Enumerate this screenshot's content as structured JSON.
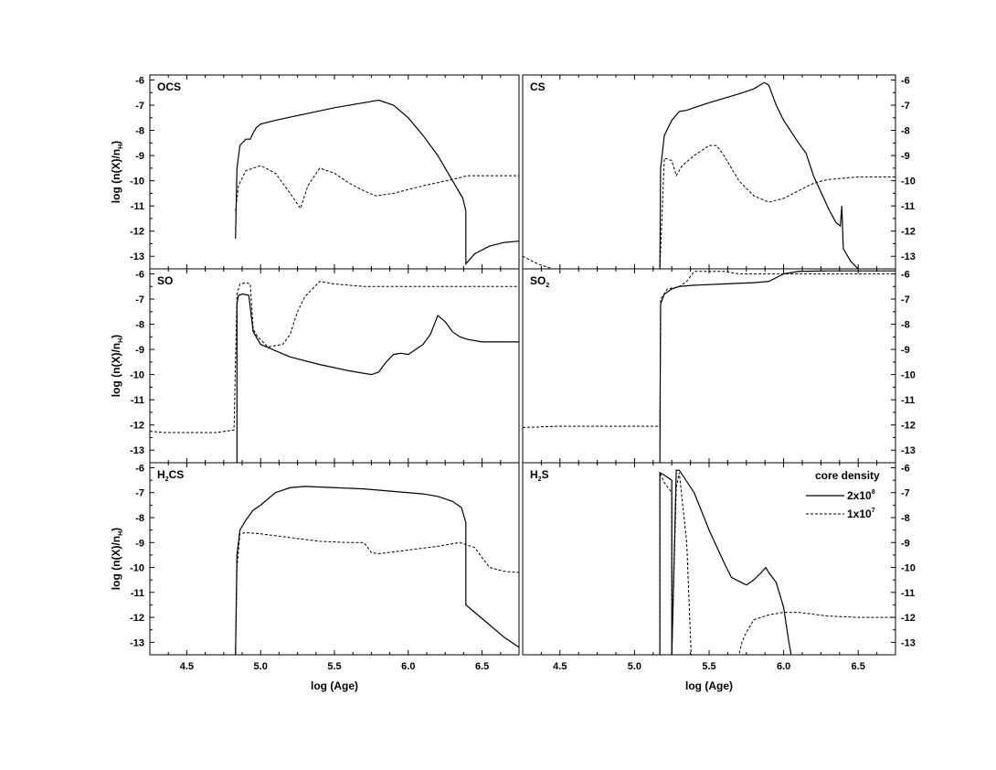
{
  "chart_data": {
    "type": "line",
    "ylabel": [
      "log (n(X)/n",
      "H",
      ")"
    ],
    "xlabel": "log (Age)",
    "xlim": [
      4.25,
      6.75
    ],
    "ylim": [
      -13.5,
      -5.8
    ],
    "xticks": [
      "4.5",
      "5.0",
      "5.5",
      "6.0",
      "6.5"
    ],
    "yticks": [
      "-6",
      "-7",
      "-8",
      "-9",
      "-10",
      "-11",
      "-12",
      "-13"
    ],
    "legend": {
      "title": "core density",
      "placement": "top-right of H2S panel",
      "entries": [
        {
          "style": "solid",
          "base": "2x10",
          "exp": "8"
        },
        {
          "style": "dashed",
          "base": "1x10",
          "exp": "7"
        }
      ]
    },
    "panels": [
      {
        "title": [
          "OCS"
        ],
        "position": "top-left",
        "series": [
          {
            "style": "solid",
            "x": [
              4.83,
              4.84,
              4.86,
              4.9,
              4.93,
              4.95,
              4.97,
              5.0,
              5.1,
              5.3,
              5.5,
              5.7,
              5.8,
              5.9,
              6.0,
              6.1,
              6.2,
              6.3,
              6.37,
              6.39,
              6.39,
              6.45,
              6.55,
              6.65,
              6.75
            ],
            "y": [
              -12.3,
              -9.5,
              -8.6,
              -8.35,
              -8.35,
              -8.1,
              -7.9,
              -7.75,
              -7.6,
              -7.35,
              -7.1,
              -6.9,
              -6.8,
              -7.0,
              -7.5,
              -8.2,
              -9.0,
              -10.0,
              -10.7,
              -11.2,
              -13.3,
              -12.9,
              -12.6,
              -12.45,
              -12.4
            ]
          },
          {
            "style": "dashed",
            "x": [
              4.83,
              4.85,
              4.9,
              5.0,
              5.1,
              5.2,
              5.27,
              5.32,
              5.4,
              5.5,
              5.6,
              5.7,
              5.78,
              5.9,
              6.1,
              6.3,
              6.4,
              6.5,
              6.75
            ],
            "y": [
              -11.2,
              -10.2,
              -9.6,
              -9.4,
              -9.7,
              -10.5,
              -11.1,
              -10.2,
              -9.5,
              -9.7,
              -10.1,
              -10.4,
              -10.6,
              -10.5,
              -10.2,
              -9.95,
              -9.8,
              -9.8,
              -9.8
            ]
          }
        ]
      },
      {
        "title": [
          "CS"
        ],
        "position": "top-right",
        "series": [
          {
            "style": "solid",
            "x": [
              5.17,
              5.175,
              5.2,
              5.25,
              5.3,
              5.35,
              5.5,
              5.7,
              5.8,
              5.87,
              5.9,
              5.95,
              6.0,
              6.1,
              6.15,
              6.2,
              6.3,
              6.35,
              6.38,
              6.39,
              6.4,
              6.45,
              6.5
            ],
            "y": [
              -13.5,
              -9.5,
              -8.2,
              -7.6,
              -7.25,
              -7.2,
              -6.9,
              -6.55,
              -6.35,
              -6.1,
              -6.2,
              -7.0,
              -7.6,
              -8.5,
              -8.9,
              -9.8,
              -11.1,
              -11.65,
              -11.8,
              -11.0,
              -12.7,
              -13.2,
              -13.5
            ]
          },
          {
            "style": "dashed",
            "x": [
              4.25,
              4.35,
              4.45,
              5.17,
              5.2,
              5.25,
              5.28,
              5.32,
              5.4,
              5.5,
              5.55,
              5.6,
              5.7,
              5.8,
              5.9,
              6.0,
              6.1,
              6.2,
              6.3,
              6.5,
              6.75
            ],
            "y": [
              -13.0,
              -13.3,
              -13.5,
              -13.5,
              -9.1,
              -9.2,
              -9.8,
              -9.4,
              -9.0,
              -8.6,
              -8.6,
              -9.0,
              -10.0,
              -10.6,
              -10.85,
              -10.7,
              -10.4,
              -10.1,
              -9.95,
              -9.85,
              -9.85
            ]
          }
        ]
      },
      {
        "title": [
          "SO"
        ],
        "position": "middle-left",
        "series": [
          {
            "style": "solid",
            "x": [
              4.84,
              4.84,
              4.85,
              4.88,
              4.92,
              4.95,
              5.0,
              5.2,
              5.4,
              5.6,
              5.75,
              5.8,
              5.85,
              5.9,
              5.95,
              6.0,
              6.05,
              6.1,
              6.15,
              6.2,
              6.25,
              6.3,
              6.35,
              6.4,
              6.5,
              6.75
            ],
            "y": [
              -13.5,
              -7.2,
              -6.85,
              -6.8,
              -6.85,
              -8.3,
              -8.8,
              -9.3,
              -9.6,
              -9.85,
              -10.0,
              -9.9,
              -9.5,
              -9.2,
              -9.15,
              -9.2,
              -9.0,
              -8.8,
              -8.4,
              -7.65,
              -7.9,
              -8.3,
              -8.5,
              -8.6,
              -8.7,
              -8.7
            ]
          },
          {
            "style": "dashed",
            "x": [
              4.25,
              4.35,
              4.5,
              4.7,
              4.82,
              4.84,
              4.86,
              4.9,
              4.93,
              4.95,
              4.98,
              5.05,
              5.15,
              5.2,
              5.25,
              5.3,
              5.4,
              5.5,
              5.7,
              6.0,
              6.3,
              6.75
            ],
            "y": [
              -12.25,
              -12.3,
              -12.3,
              -12.3,
              -12.2,
              -6.8,
              -6.4,
              -6.35,
              -6.4,
              -8.2,
              -8.5,
              -8.9,
              -8.8,
              -8.4,
              -7.5,
              -6.9,
              -6.3,
              -6.4,
              -6.5,
              -6.5,
              -6.5,
              -6.5
            ]
          }
        ]
      },
      {
        "title": [
          "SO",
          "2"
        ],
        "position": "middle-right",
        "series": [
          {
            "style": "solid",
            "x": [
              5.17,
              5.175,
              5.2,
              5.25,
              5.3,
              5.4,
              5.6,
              5.8,
              5.9,
              5.95,
              6.0,
              6.1,
              6.3,
              6.75
            ],
            "y": [
              -13.5,
              -7.2,
              -6.8,
              -6.6,
              -6.5,
              -6.45,
              -6.4,
              -6.35,
              -6.3,
              -6.15,
              -6.0,
              -5.9,
              -5.88,
              -5.88
            ]
          },
          {
            "style": "dashed",
            "x": [
              4.25,
              4.5,
              5.17,
              5.175,
              5.22,
              5.3,
              5.35,
              5.4,
              5.5,
              5.6,
              5.7,
              5.8,
              6.0,
              6.75
            ],
            "y": [
              -12.1,
              -12.05,
              -12.05,
              -7.0,
              -6.6,
              -6.5,
              -6.3,
              -5.9,
              -5.9,
              -5.9,
              -6.0,
              -6.0,
              -6.0,
              -6.0
            ]
          }
        ]
      },
      {
        "title": [
          "H",
          "2",
          "CS"
        ],
        "position": "bottom-left",
        "series": [
          {
            "style": "solid",
            "x": [
              4.83,
              4.84,
              4.86,
              4.9,
              4.95,
              5.0,
              5.1,
              5.2,
              5.3,
              5.5,
              5.7,
              5.9,
              6.1,
              6.2,
              6.3,
              6.36,
              6.39,
              6.39,
              6.45,
              6.55,
              6.65,
              6.75
            ],
            "y": [
              -13.5,
              -9.5,
              -8.5,
              -8.1,
              -7.7,
              -7.5,
              -7.0,
              -6.8,
              -6.75,
              -6.8,
              -6.85,
              -6.95,
              -7.05,
              -7.15,
              -7.35,
              -7.6,
              -8.2,
              -11.5,
              -11.8,
              -12.3,
              -12.8,
              -13.2
            ]
          },
          {
            "style": "dashed",
            "x": [
              4.83,
              4.84,
              4.86,
              4.9,
              5.0,
              5.2,
              5.4,
              5.6,
              5.7,
              5.75,
              5.8,
              6.0,
              6.2,
              6.35,
              6.45,
              6.5,
              6.55,
              6.65,
              6.75
            ],
            "y": [
              -13.5,
              -10.0,
              -8.65,
              -8.6,
              -8.65,
              -8.8,
              -8.95,
              -9.0,
              -9.0,
              -9.4,
              -9.45,
              -9.3,
              -9.15,
              -9.0,
              -9.2,
              -9.6,
              -10.0,
              -10.15,
              -10.2
            ]
          }
        ]
      },
      {
        "title": [
          "H",
          "2",
          "S"
        ],
        "position": "bottom-right",
        "series": [
          {
            "style": "solid",
            "x": [
              5.17,
              5.17,
              5.2,
              5.25,
              5.25,
              5.28,
              5.3,
              5.4,
              5.5,
              5.6,
              5.65,
              5.75,
              5.8,
              5.85,
              5.88,
              5.9,
              5.95,
              6.0,
              6.03,
              6.05
            ],
            "y": [
              -13.5,
              -6.2,
              -6.3,
              -6.5,
              -13.5,
              -6.1,
              -6.1,
              -7.0,
              -8.5,
              -9.8,
              -10.4,
              -10.7,
              -10.5,
              -10.2,
              -10.0,
              -10.2,
              -10.6,
              -11.6,
              -12.8,
              -13.5
            ]
          },
          {
            "style": "dashed",
            "x": [
              5.17,
              5.17,
              5.2,
              5.25,
              5.25,
              5.28,
              5.3,
              5.35,
              5.38,
              5.4,
              5.7,
              5.72,
              5.75,
              5.8,
              5.9,
              6.0,
              6.1,
              6.3,
              6.5,
              6.75
            ],
            "y": [
              -13.5,
              -6.2,
              -6.6,
              -7.0,
              -13.5,
              -6.8,
              -6.2,
              -9.0,
              -13.5,
              -13.5,
              -13.5,
              -13.0,
              -12.6,
              -12.1,
              -11.9,
              -11.8,
              -11.8,
              -11.95,
              -12.0,
              -12.0
            ]
          }
        ]
      }
    ]
  }
}
